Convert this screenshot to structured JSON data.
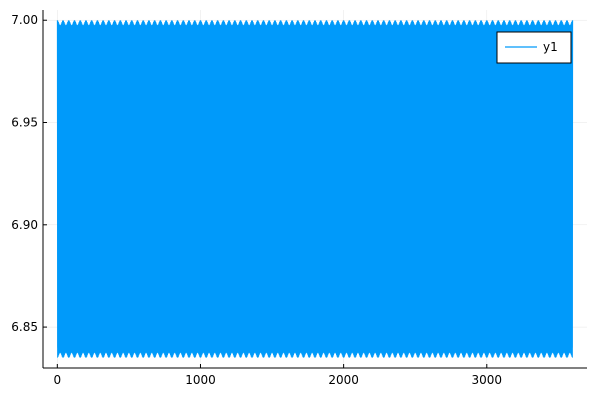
{
  "chart_data": {
    "type": "line",
    "title": "",
    "xlabel": "",
    "ylabel": "",
    "xlim": [
      -100,
      3700
    ],
    "ylim": [
      6.83,
      7.005
    ],
    "xticks": [
      0,
      1000,
      2000,
      3000
    ],
    "xtick_labels": [
      "0",
      "1000",
      "2000",
      "3000"
    ],
    "yticks": [
      6.85,
      6.9,
      6.95,
      7.0
    ],
    "ytick_labels": [
      "6.85",
      "6.90",
      "6.95",
      "7.00"
    ],
    "grid": true,
    "legend_position": "top-right",
    "series": [
      {
        "name": "y1",
        "color": "#009AFA",
        "x_range": [
          0,
          3600
        ],
        "value_range": [
          6.835,
          7.0
        ],
        "note_shape": "dense oscillation filling the band"
      }
    ]
  }
}
